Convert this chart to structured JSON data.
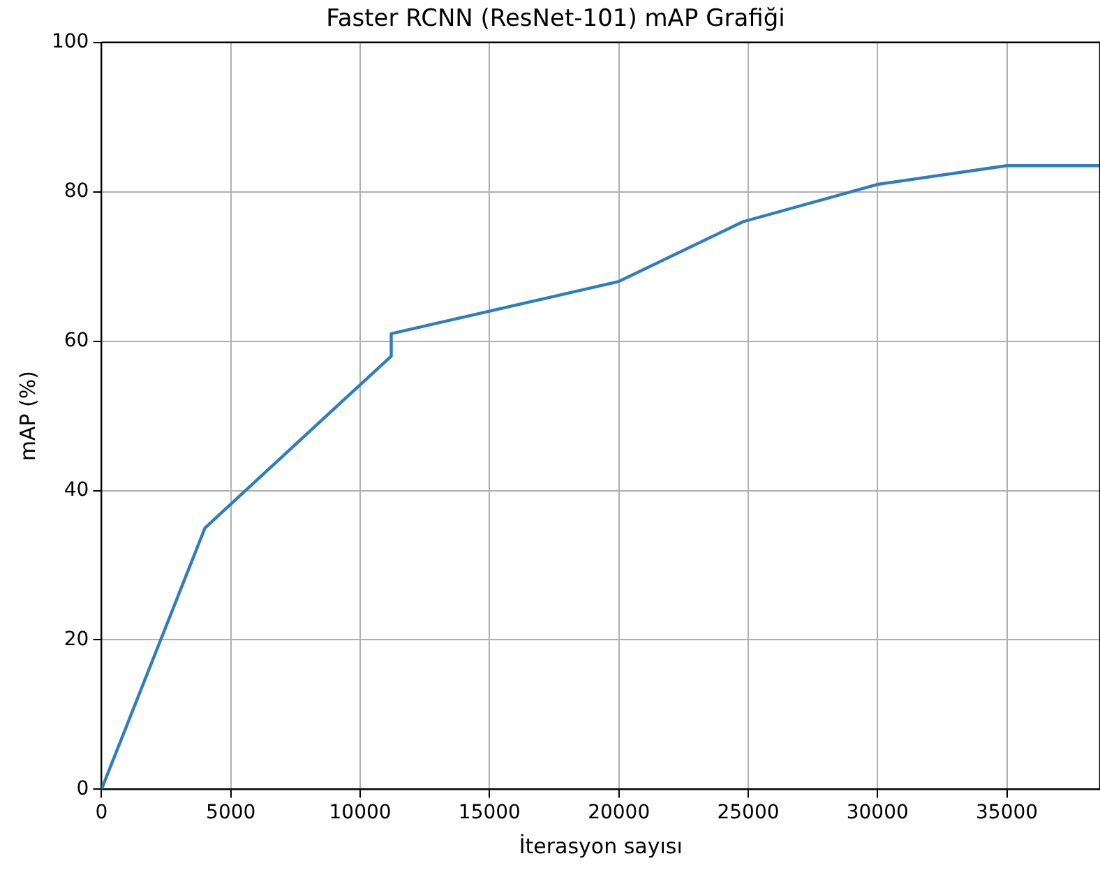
{
  "chart_data": {
    "type": "line",
    "title": "Faster RCNN (ResNet-101) mAP Grafiği",
    "xlabel": "İterasyon sayısı",
    "ylabel": "mAP (%)",
    "x": [
      0,
      4000,
      11200,
      11200,
      20000,
      24800,
      30000,
      35000,
      38600
    ],
    "series": [
      {
        "color": "#2f7ebc",
        "values": [
          0,
          35,
          58,
          61,
          68,
          76,
          81,
          83.5,
          83.5
        ]
      }
    ],
    "xlim": [
      0,
      38600
    ],
    "xticks": [
      0,
      5000,
      10000,
      15000,
      20000,
      25000,
      30000,
      35000
    ],
    "ylim": [
      0,
      100
    ],
    "yticks": [
      0,
      20,
      40,
      60,
      80,
      100
    ],
    "grid": true,
    "legend": false,
    "marker": "none",
    "line_style": "solid"
  }
}
